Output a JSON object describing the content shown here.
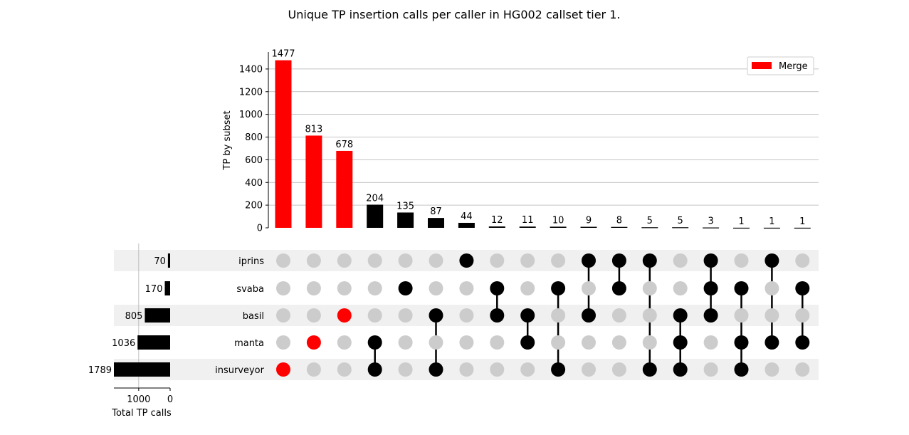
{
  "chart_data": {
    "type": "bar",
    "title": "Unique TP insertion calls per caller in HG002 callset tier 1.",
    "ylabel": "TP by subset",
    "ylim": [
      0,
      1550
    ],
    "yticks": [
      0,
      200,
      400,
      600,
      800,
      1000,
      1200,
      1400
    ],
    "grid": true,
    "legend": {
      "entries": [
        "Merge"
      ],
      "placement": "top-right"
    },
    "colors": {
      "highlight": "#ff0000",
      "default": "#000000",
      "inactive_dot": "#cccccc",
      "band": "#f0f0f0"
    },
    "sets": [
      "iprins",
      "svaba",
      "basil",
      "manta",
      "insurveyor"
    ],
    "set_totals": [
      70,
      170,
      805,
      1036,
      1789
    ],
    "totals_axis": {
      "label": "Total TP calls",
      "ticks": [
        1000,
        0
      ],
      "xlim": [
        0,
        1789
      ]
    },
    "subsets": [
      {
        "members": [
          "insurveyor"
        ],
        "value": 1477,
        "highlight": true
      },
      {
        "members": [
          "manta"
        ],
        "value": 813,
        "highlight": true
      },
      {
        "members": [
          "basil"
        ],
        "value": 678,
        "highlight": true
      },
      {
        "members": [
          "manta",
          "insurveyor"
        ],
        "value": 204,
        "highlight": false
      },
      {
        "members": [
          "svaba"
        ],
        "value": 135,
        "highlight": false
      },
      {
        "members": [
          "basil",
          "insurveyor"
        ],
        "value": 87,
        "highlight": false
      },
      {
        "members": [
          "iprins"
        ],
        "value": 44,
        "highlight": false
      },
      {
        "members": [
          "svaba",
          "basil"
        ],
        "value": 12,
        "highlight": false
      },
      {
        "members": [
          "basil",
          "manta"
        ],
        "value": 11,
        "highlight": false
      },
      {
        "members": [
          "svaba",
          "insurveyor"
        ],
        "value": 10,
        "highlight": false
      },
      {
        "members": [
          "iprins",
          "basil"
        ],
        "value": 9,
        "highlight": false
      },
      {
        "members": [
          "iprins",
          "svaba"
        ],
        "value": 8,
        "highlight": false
      },
      {
        "members": [
          "iprins",
          "insurveyor"
        ],
        "value": 5,
        "highlight": false
      },
      {
        "members": [
          "basil",
          "manta",
          "insurveyor"
        ],
        "value": 5,
        "highlight": false
      },
      {
        "members": [
          "iprins",
          "svaba",
          "basil"
        ],
        "value": 3,
        "highlight": false
      },
      {
        "members": [
          "svaba",
          "manta",
          "insurveyor"
        ],
        "value": 1,
        "highlight": false
      },
      {
        "members": [
          "iprins",
          "manta"
        ],
        "value": 1,
        "highlight": false
      },
      {
        "members": [
          "svaba",
          "manta"
        ],
        "value": 1,
        "highlight": false
      }
    ]
  }
}
